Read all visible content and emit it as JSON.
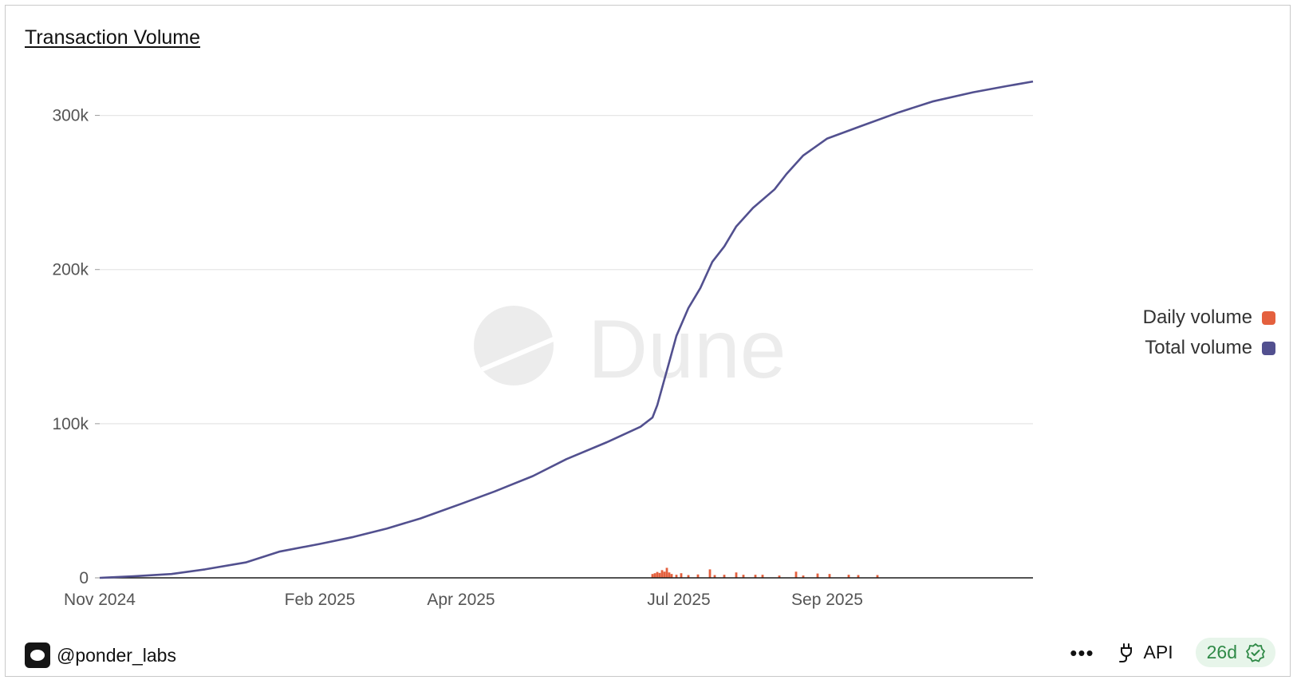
{
  "title": "Transaction Volume",
  "watermark": "Dune",
  "user": {
    "handle": "@ponder_labs"
  },
  "actions": {
    "more": "•••",
    "api_label": "API",
    "age_badge": "26d"
  },
  "colors": {
    "daily": "#e4603e",
    "total": "#52508f",
    "grid": "#e6e6e6"
  },
  "icons": [
    "avatar-logo-icon",
    "more-dots-icon",
    "plug-icon",
    "verified-check-icon"
  ],
  "chart_data": {
    "type": "line",
    "title": "Transaction Volume",
    "legend_position": "right",
    "grid": true,
    "x_start": "2024-11-01",
    "x_end": "2025-11-26",
    "x_ticks": [
      {
        "label": "Nov 2024",
        "date": "2024-11-01"
      },
      {
        "label": "Feb 2025",
        "date": "2025-02-01"
      },
      {
        "label": "Apr 2025",
        "date": "2025-04-01"
      },
      {
        "label": "Jul 2025",
        "date": "2025-07-01"
      },
      {
        "label": "Sep 2025",
        "date": "2025-09-01"
      }
    ],
    "y_ticks": [
      {
        "label": "0",
        "value": 0
      },
      {
        "label": "100k",
        "value": 100000
      },
      {
        "label": "200k",
        "value": 200000
      },
      {
        "label": "300k",
        "value": 300000
      }
    ],
    "ylim": [
      0,
      335000
    ],
    "series": [
      {
        "name": "Total volume",
        "kind": "line",
        "color": "#52508f",
        "points": [
          [
            "2024-11-01",
            0
          ],
          [
            "2024-11-15",
            1000
          ],
          [
            "2024-12-01",
            2500
          ],
          [
            "2024-12-15",
            5500
          ],
          [
            "2025-01-01",
            10000
          ],
          [
            "2025-01-15",
            17000
          ],
          [
            "2025-02-01",
            22000
          ],
          [
            "2025-02-15",
            26500
          ],
          [
            "2025-03-01",
            32000
          ],
          [
            "2025-03-15",
            38500
          ],
          [
            "2025-04-01",
            48000
          ],
          [
            "2025-04-15",
            56000
          ],
          [
            "2025-05-01",
            66000
          ],
          [
            "2025-05-15",
            77000
          ],
          [
            "2025-06-01",
            88000
          ],
          [
            "2025-06-15",
            98000
          ],
          [
            "2025-06-20",
            104000
          ],
          [
            "2025-06-22",
            112000
          ],
          [
            "2025-06-27",
            140000
          ],
          [
            "2025-06-30",
            157000
          ],
          [
            "2025-07-05",
            175000
          ],
          [
            "2025-07-10",
            188000
          ],
          [
            "2025-07-15",
            205000
          ],
          [
            "2025-07-20",
            215000
          ],
          [
            "2025-07-25",
            228000
          ],
          [
            "2025-08-01",
            240000
          ],
          [
            "2025-08-10",
            252000
          ],
          [
            "2025-08-15",
            262000
          ],
          [
            "2025-08-22",
            274000
          ],
          [
            "2025-09-01",
            285000
          ],
          [
            "2025-09-15",
            293000
          ],
          [
            "2025-10-01",
            302000
          ],
          [
            "2025-10-15",
            309000
          ],
          [
            "2025-11-01",
            315000
          ],
          [
            "2025-11-15",
            319000
          ],
          [
            "2025-11-26",
            322000
          ]
        ]
      },
      {
        "name": "Daily volume",
        "kind": "bar",
        "color": "#e4603e",
        "points": [
          [
            "2025-06-20",
            2500
          ],
          [
            "2025-06-21",
            3000
          ],
          [
            "2025-06-22",
            3800
          ],
          [
            "2025-06-23",
            3200
          ],
          [
            "2025-06-24",
            5000
          ],
          [
            "2025-06-25",
            4000
          ],
          [
            "2025-06-26",
            6500
          ],
          [
            "2025-06-27",
            3500
          ],
          [
            "2025-06-28",
            2500
          ],
          [
            "2025-06-30",
            2000
          ],
          [
            "2025-07-02",
            3000
          ],
          [
            "2025-07-05",
            1800
          ],
          [
            "2025-07-09",
            2200
          ],
          [
            "2025-07-14",
            5500
          ],
          [
            "2025-07-16",
            1800
          ],
          [
            "2025-07-20",
            2000
          ],
          [
            "2025-07-25",
            3500
          ],
          [
            "2025-07-28",
            2000
          ],
          [
            "2025-08-02",
            2000
          ],
          [
            "2025-08-05",
            2000
          ],
          [
            "2025-08-12",
            1500
          ],
          [
            "2025-08-19",
            4000
          ],
          [
            "2025-08-22",
            1500
          ],
          [
            "2025-08-28",
            2800
          ],
          [
            "2025-09-02",
            2500
          ],
          [
            "2025-09-10",
            2000
          ],
          [
            "2025-09-14",
            1800
          ],
          [
            "2025-09-22",
            1800
          ]
        ]
      }
    ]
  }
}
